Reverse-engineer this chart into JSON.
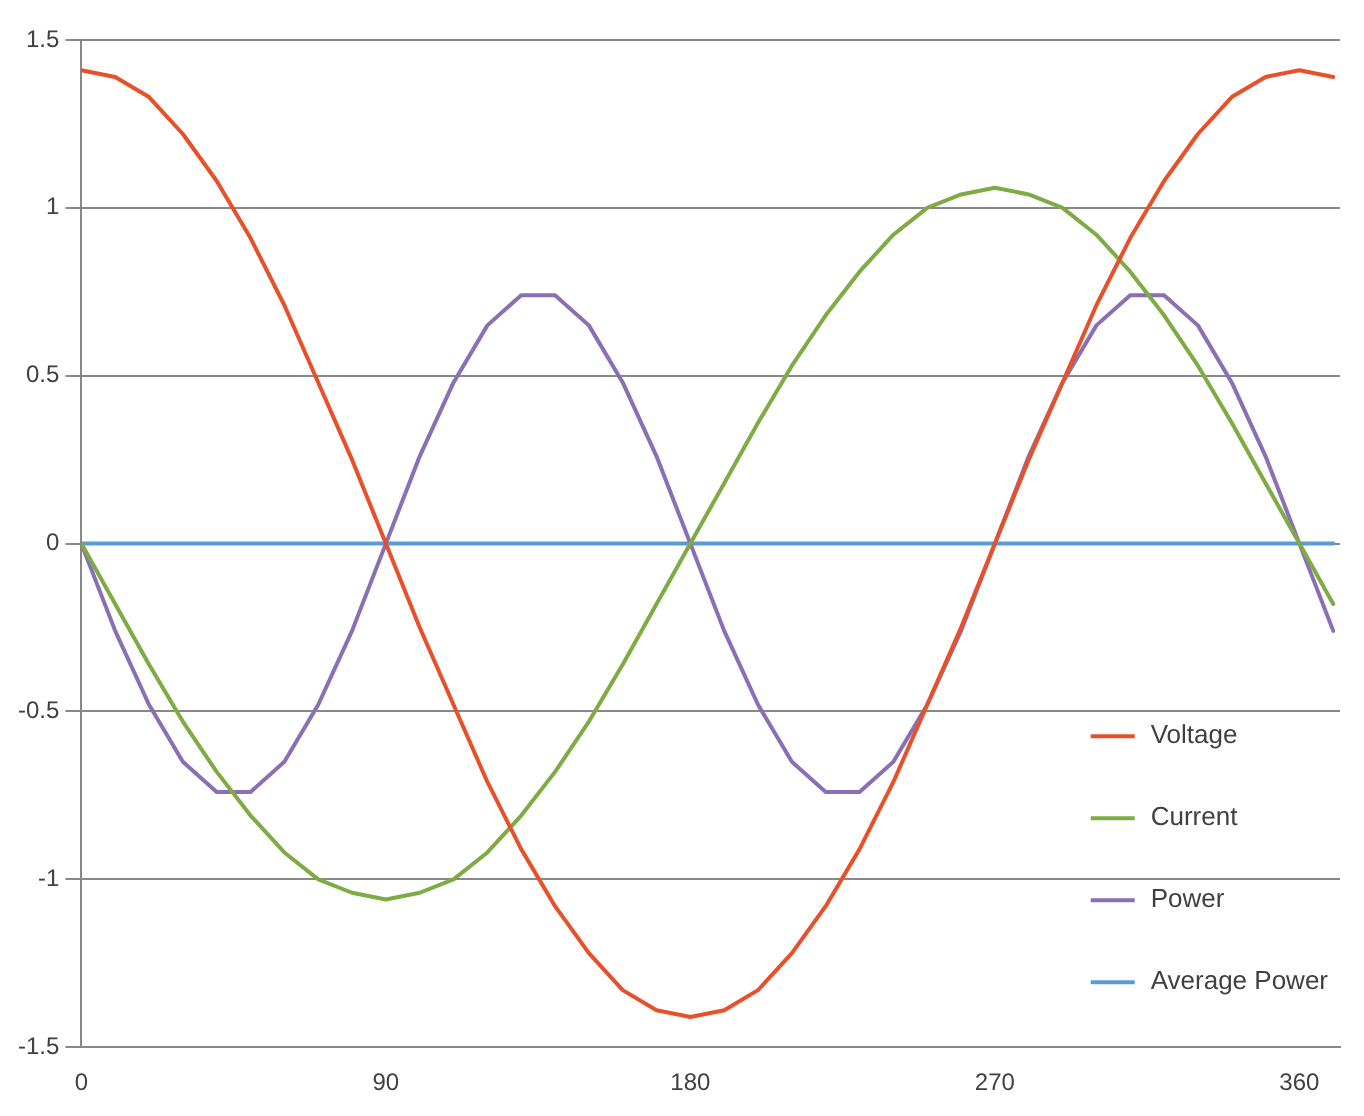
{
  "chart_data": {
    "type": "line",
    "x": [
      0,
      10,
      20,
      30,
      40,
      50,
      60,
      70,
      80,
      90,
      100,
      110,
      120,
      130,
      140,
      150,
      160,
      170,
      180,
      190,
      200,
      210,
      220,
      230,
      240,
      250,
      260,
      270,
      280,
      290,
      300,
      310,
      320,
      330,
      340,
      350,
      360,
      370
    ],
    "series": [
      {
        "name": "Voltage",
        "color": "#e8502a",
        "values": [
          1.41,
          1.39,
          1.33,
          1.22,
          1.08,
          0.91,
          0.71,
          0.48,
          0.25,
          0,
          -0.25,
          -0.48,
          -0.71,
          -0.91,
          -1.08,
          -1.22,
          -1.33,
          -1.39,
          -1.41,
          -1.39,
          -1.33,
          -1.22,
          -1.08,
          -0.91,
          -0.71,
          -0.48,
          -0.25,
          0,
          0.25,
          0.48,
          0.71,
          0.91,
          1.08,
          1.22,
          1.33,
          1.39,
          1.41,
          1.39
        ]
      },
      {
        "name": "Current",
        "color": "#7fab45",
        "values": [
          0,
          -0.18,
          -0.36,
          -0.53,
          -0.68,
          -0.81,
          -0.92,
          -1.0,
          -1.04,
          -1.06,
          -1.04,
          -1.0,
          -0.92,
          -0.81,
          -0.68,
          -0.53,
          -0.36,
          -0.18,
          0,
          0.18,
          0.36,
          0.53,
          0.68,
          0.81,
          0.92,
          1.0,
          1.04,
          1.06,
          1.04,
          1.0,
          0.92,
          0.81,
          0.68,
          0.53,
          0.36,
          0.18,
          0,
          -0.18
        ]
      },
      {
        "name": "Power",
        "color": "#8a6fb5",
        "values": [
          0,
          -0.26,
          -0.48,
          -0.65,
          -0.74,
          -0.74,
          -0.65,
          -0.48,
          -0.26,
          0,
          0.26,
          0.48,
          0.65,
          0.74,
          0.74,
          0.65,
          0.48,
          0.26,
          0,
          -0.26,
          -0.48,
          -0.65,
          -0.74,
          -0.74,
          -0.65,
          -0.48,
          -0.26,
          0,
          0.26,
          0.48,
          0.65,
          0.74,
          0.74,
          0.65,
          0.48,
          0.26,
          0,
          -0.26
        ]
      },
      {
        "name": "Average Power",
        "color": "#5b9bd5",
        "values": [
          0,
          0,
          0,
          0,
          0,
          0,
          0,
          0,
          0,
          0,
          0,
          0,
          0,
          0,
          0,
          0,
          0,
          0,
          0,
          0,
          0,
          0,
          0,
          0,
          0,
          0,
          0,
          0,
          0,
          0,
          0,
          0,
          0,
          0,
          0,
          0,
          0,
          0
        ]
      }
    ],
    "xlim": [
      0,
      372
    ],
    "xticks": [
      0,
      90,
      180,
      270,
      360
    ],
    "ylim": [
      -1.5,
      1.5
    ],
    "yticks": [
      -1.5,
      -1,
      -0.5,
      0,
      0.5,
      1,
      1.5
    ],
    "grid": "y",
    "legend": "bottom right",
    "marker": "none",
    "line_style": "solid"
  }
}
